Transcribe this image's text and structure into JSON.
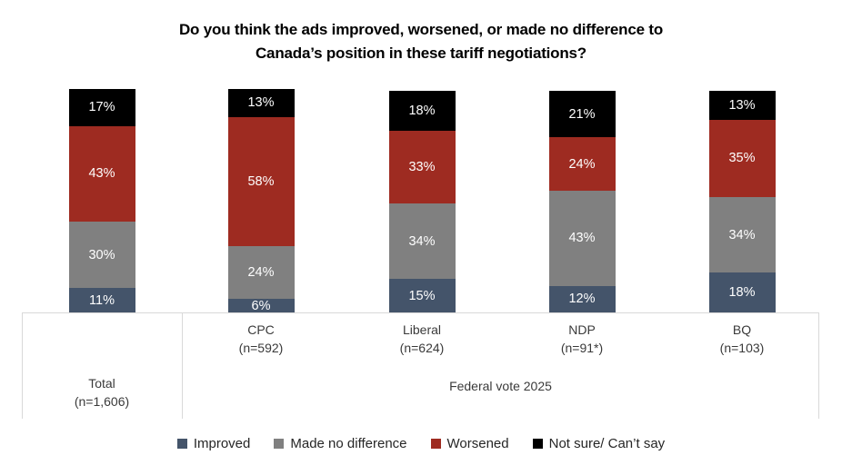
{
  "title": {
    "line1": "Do you think the ads improved, worsened, or made no difference to",
    "line2": "Canada’s position in these tariff negotiations?"
  },
  "chart_data": {
    "type": "bar",
    "stacked": true,
    "units": "percent",
    "value_suffix": "%",
    "title": "Do you think the ads improved, worsened, or made no difference to Canada’s position in these tariff negotiations?",
    "categories": [
      {
        "label": "Total",
        "n": "(n=1,606)"
      },
      {
        "label": "CPC",
        "n": "(n=592)"
      },
      {
        "label": "Liberal",
        "n": "(n=624)"
      },
      {
        "label": "NDP",
        "n": "(n=91*)"
      },
      {
        "label": "BQ",
        "n": "(n=103)"
      }
    ],
    "group_axis": {
      "label": "Federal vote 2025",
      "applies_to": [
        "CPC",
        "Liberal",
        "NDP",
        "BQ"
      ]
    },
    "series": [
      {
        "name": "Improved",
        "color": "#44546A",
        "values": [
          11,
          6,
          15,
          12,
          18
        ]
      },
      {
        "name": "Made no difference",
        "color": "#808080",
        "values": [
          30,
          24,
          34,
          43,
          34
        ]
      },
      {
        "name": "Worsened",
        "color": "#9E2B21",
        "values": [
          43,
          58,
          33,
          24,
          35
        ]
      },
      {
        "name": "Not sure/ Can’t say",
        "color": "#000000",
        "values": [
          17,
          13,
          18,
          21,
          13
        ]
      }
    ],
    "ylim": [
      0,
      100
    ],
    "grid": false,
    "legend_position": "bottom"
  }
}
